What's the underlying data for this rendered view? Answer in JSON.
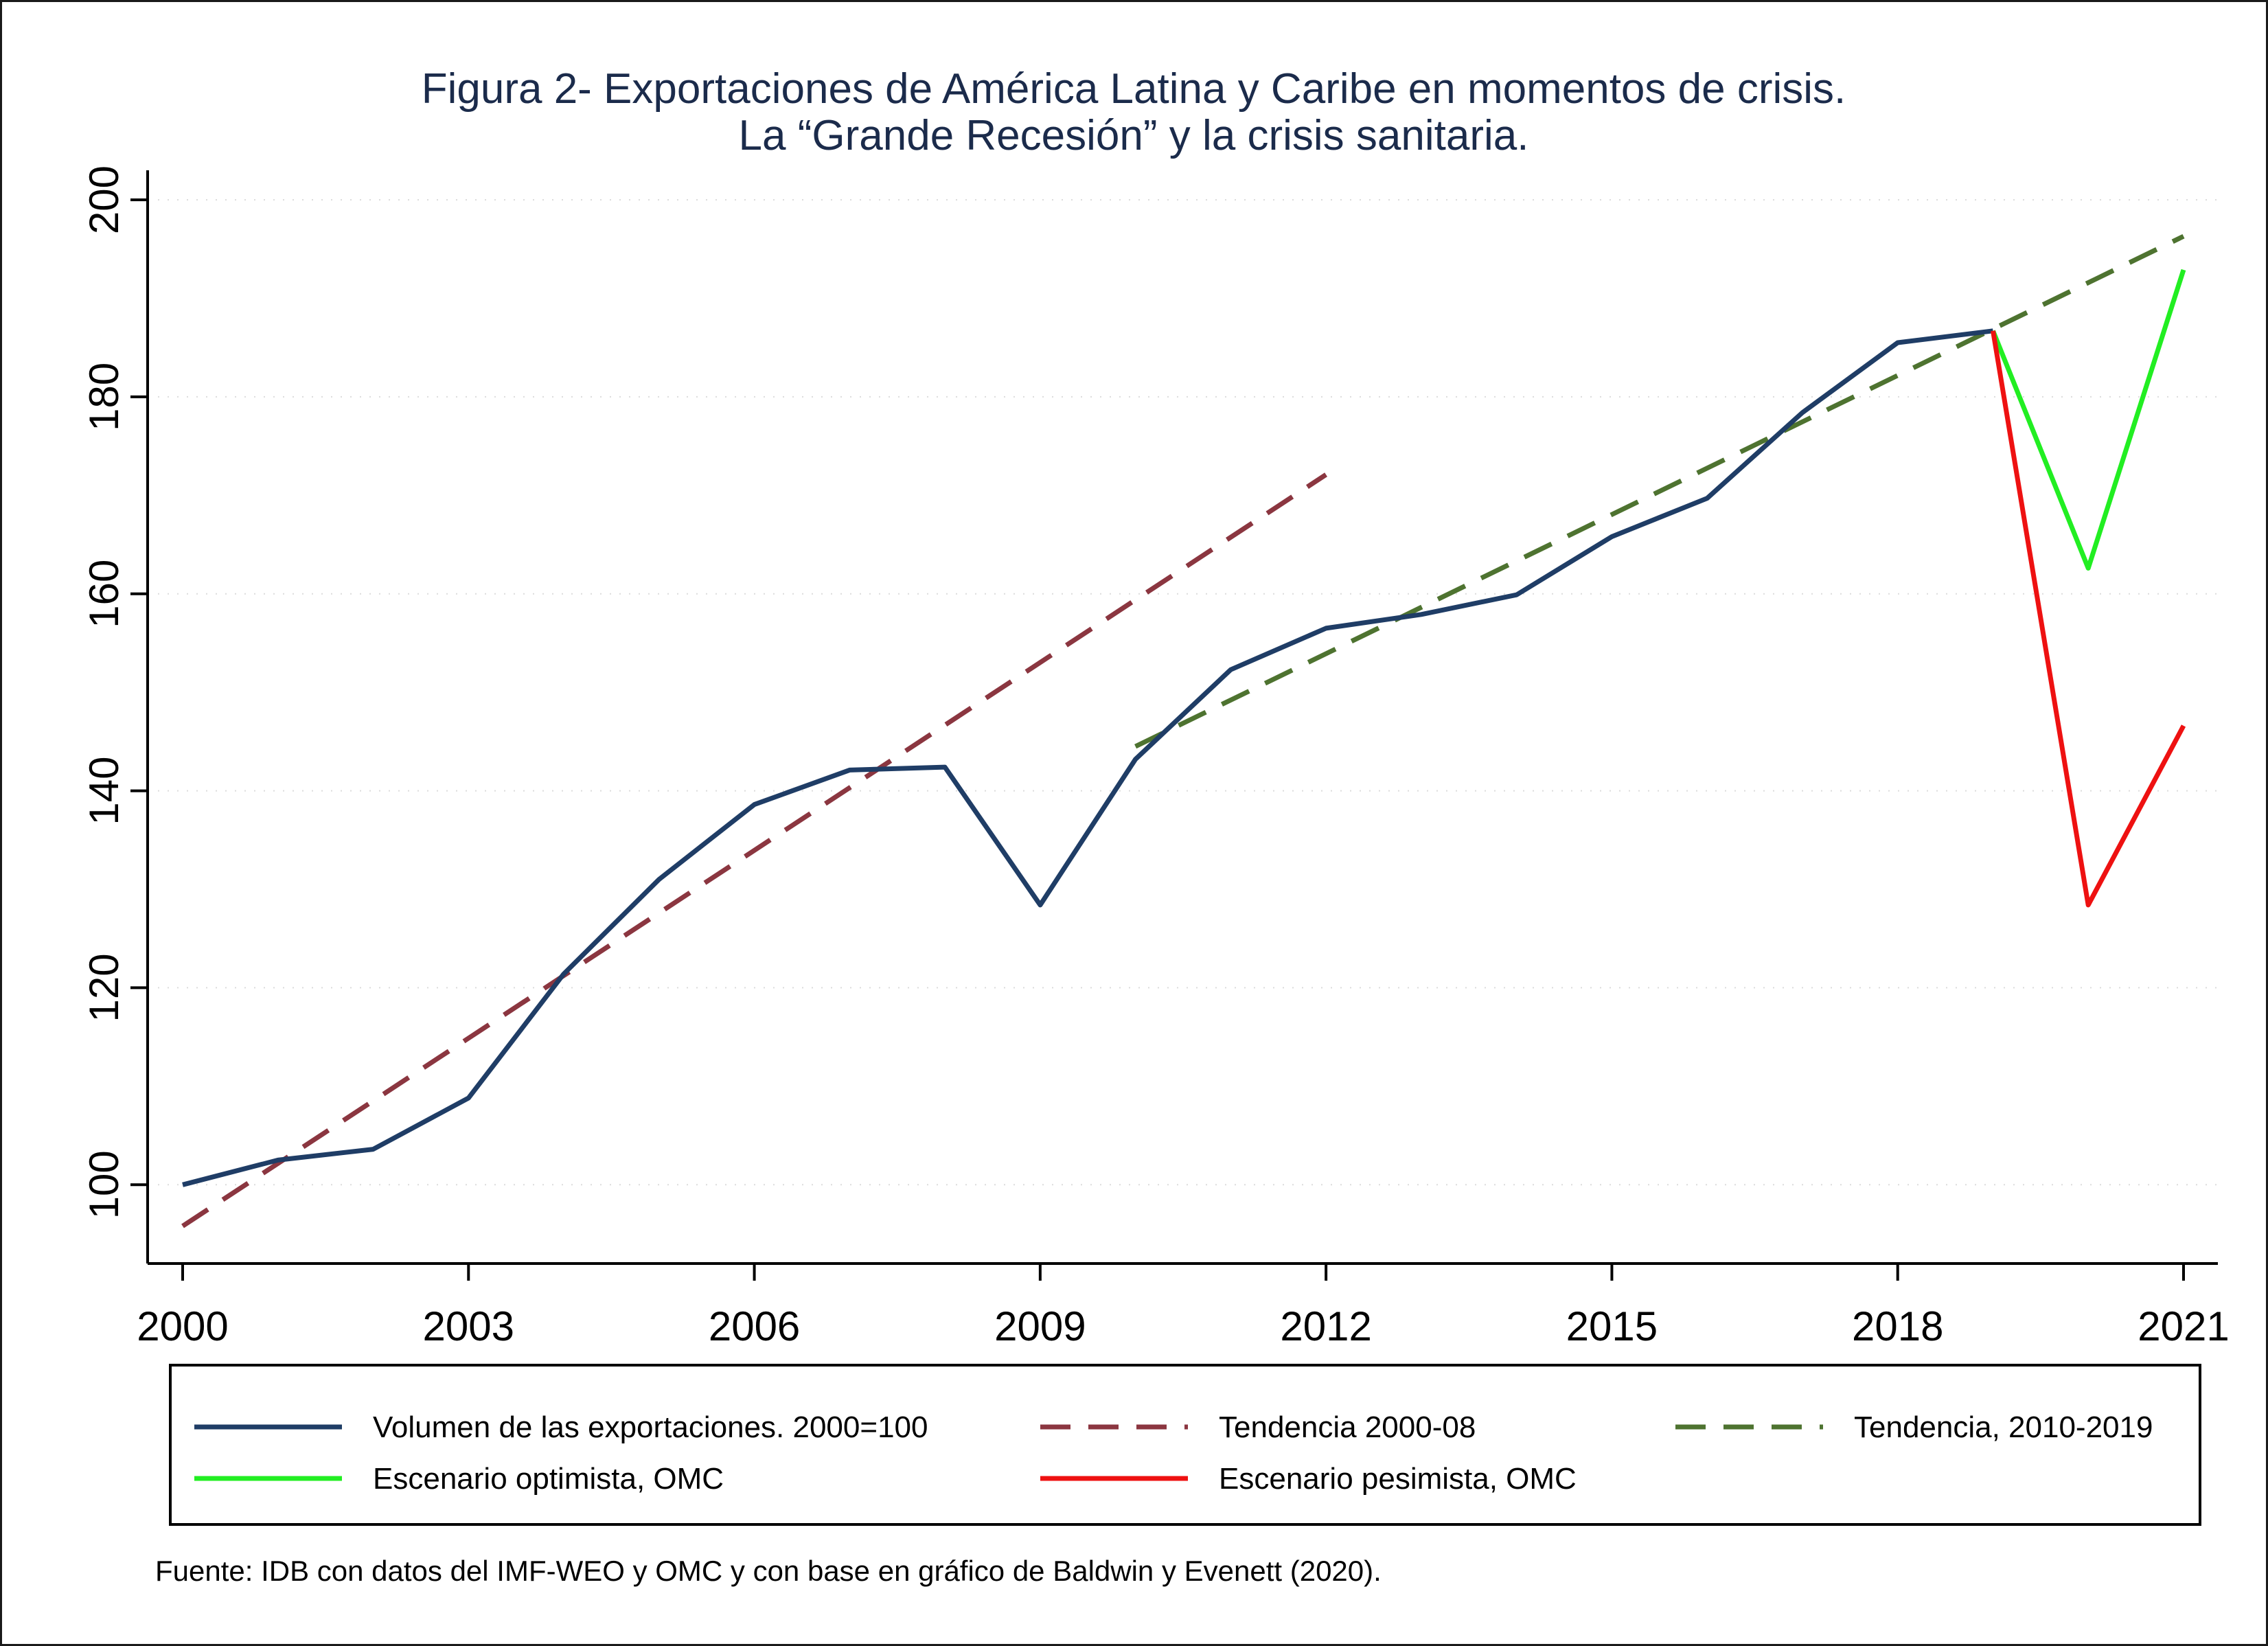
{
  "chart_data": {
    "type": "line",
    "title": "Figura 2- Exportaciones de América Latina y Caribe en momentos de crisis.",
    "subtitle": "La “Grande Recesión” y la crisis sanitaria.",
    "xlabel": "",
    "ylabel": "",
    "xlim": [
      2000,
      2021
    ],
    "ylim": [
      92,
      203
    ],
    "x_ticks": [
      2000,
      2003,
      2006,
      2009,
      2012,
      2015,
      2018,
      2021
    ],
    "y_ticks": [
      100,
      120,
      140,
      160,
      180,
      200
    ],
    "grid": "horizontal dotted",
    "legend_position": "bottom",
    "series": [
      {
        "name": "Volumen de las exportaciones. 2000=100",
        "color": "#1f3d66",
        "style": "solid",
        "x": [
          2000,
          2001,
          2002,
          2003,
          2004,
          2005,
          2006,
          2007,
          2008,
          2009,
          2010,
          2011,
          2012,
          2013,
          2014,
          2015,
          2016,
          2017,
          2018,
          2019
        ],
        "values": [
          100,
          102.5,
          103.6,
          108.8,
          121.4,
          131,
          138.6,
          142.1,
          142.4,
          128.4,
          143.2,
          152.3,
          156.5,
          157.9,
          159.9,
          165.8,
          169.7,
          178.4,
          185.5,
          186.7
        ]
      },
      {
        "name": "Tendencia 2000-08",
        "color": "#8b3640",
        "style": "dashed",
        "x": [
          2000,
          2012
        ],
        "values": [
          95.8,
          172.1
        ]
      },
      {
        "name": "Tendencia, 2010-2019",
        "color": "#4e7330",
        "style": "dashed",
        "x": [
          2010,
          2021
        ],
        "values": [
          144.5,
          196.3
        ]
      },
      {
        "name": "Escenario optimista, OMC",
        "color": "#22ee22",
        "style": "solid",
        "x": [
          2019,
          2020,
          2021
        ],
        "values": [
          186.7,
          162.6,
          192.9
        ]
      },
      {
        "name": "Escenario pesimista, OMC",
        "color": "#ee1111",
        "style": "solid",
        "x": [
          2019,
          2020,
          2021
        ],
        "values": [
          186.7,
          128.4,
          146.6
        ]
      }
    ],
    "source_note": "Fuente: IDB con datos del IMF-WEO y OMC y con base en gráfico de Baldwin y Evenett (2020)."
  }
}
